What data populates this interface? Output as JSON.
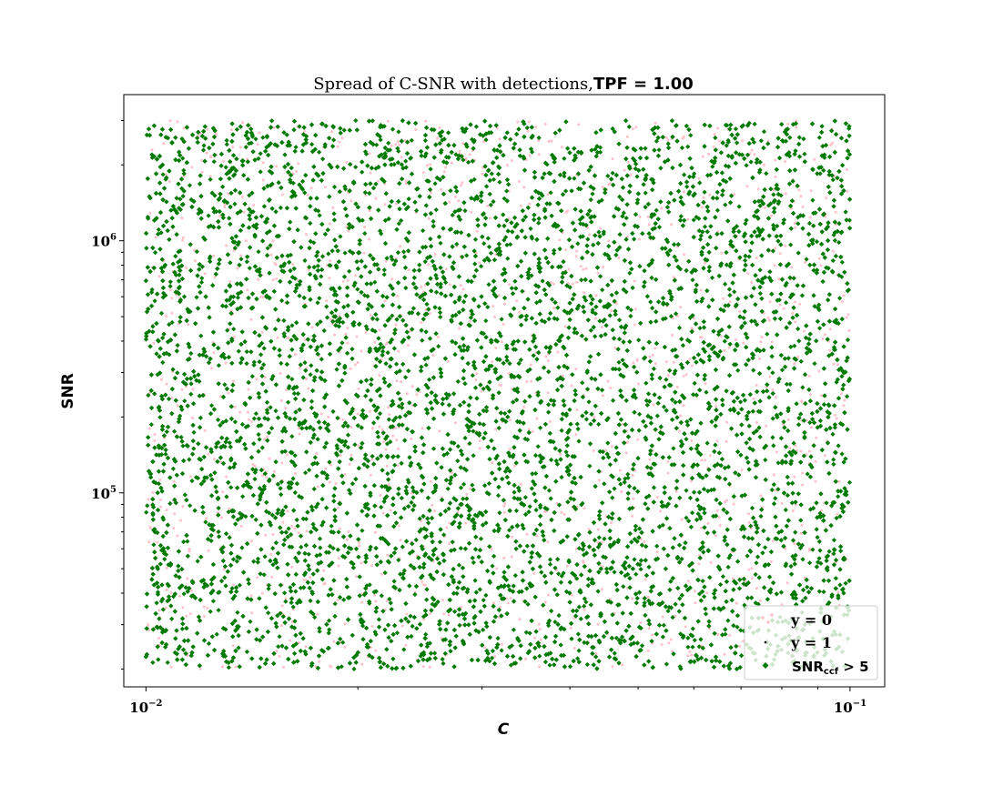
{
  "chart_data": {
    "type": "scatter",
    "title": "Spread of C-SNR with detections,",
    "title_highlight": "TPF = 1.00",
    "xlabel": "C",
    "ylabel": "SNR",
    "xscale": "log",
    "yscale": "log",
    "xlim": [
      0.0093,
      0.112
    ],
    "ylim": [
      17000,
      3800000
    ],
    "data_x_range": [
      0.01,
      0.1
    ],
    "data_y_range": [
      20000,
      3000000
    ],
    "x_ticks": [
      {
        "value": 0.01,
        "base": "10",
        "exp": "−2"
      },
      {
        "value": 0.1,
        "base": "10",
        "exp": "−1"
      }
    ],
    "y_ticks": [
      {
        "value": 100000,
        "base": "10",
        "exp": "5"
      },
      {
        "value": 1000000,
        "base": "10",
        "exp": "6"
      }
    ],
    "series": [
      {
        "name": "y = 0",
        "color": "#ffc0cb",
        "marker": "dot",
        "approx_count": 2200
      },
      {
        "name": "y = 1",
        "color": "#000000",
        "marker": "dot",
        "approx_count": 0
      },
      {
        "name": "SNR_ccf > 5",
        "label_main": "SNR",
        "label_sub": "ccf",
        "label_tail": " > 5",
        "color": "#007a00",
        "marker": "diamond",
        "approx_count": 9000
      }
    ],
    "legend_position": "lower-right",
    "grid": false
  }
}
